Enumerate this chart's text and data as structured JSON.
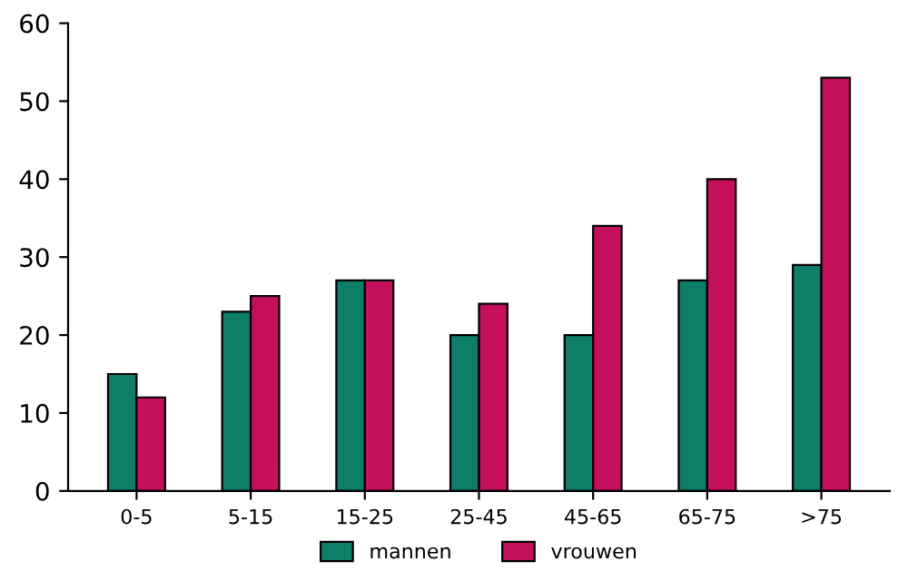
{
  "chart_data": {
    "type": "bar",
    "categories": [
      "0-5",
      "5-15",
      "15-25",
      "25-45",
      "45-65",
      "65-75",
      ">75"
    ],
    "series": [
      {
        "name": "mannen",
        "color": "#0e7d6a",
        "values": [
          15,
          23,
          27,
          20,
          20,
          27,
          29
        ]
      },
      {
        "name": "vrouwen",
        "color": "#c40f5c",
        "values": [
          12,
          25,
          27,
          24,
          34,
          40,
          53
        ]
      }
    ],
    "ylim": [
      0,
      60
    ],
    "yticks": [
      0,
      10,
      20,
      30,
      40,
      50,
      60
    ],
    "grid": false,
    "legend": "bottom"
  }
}
